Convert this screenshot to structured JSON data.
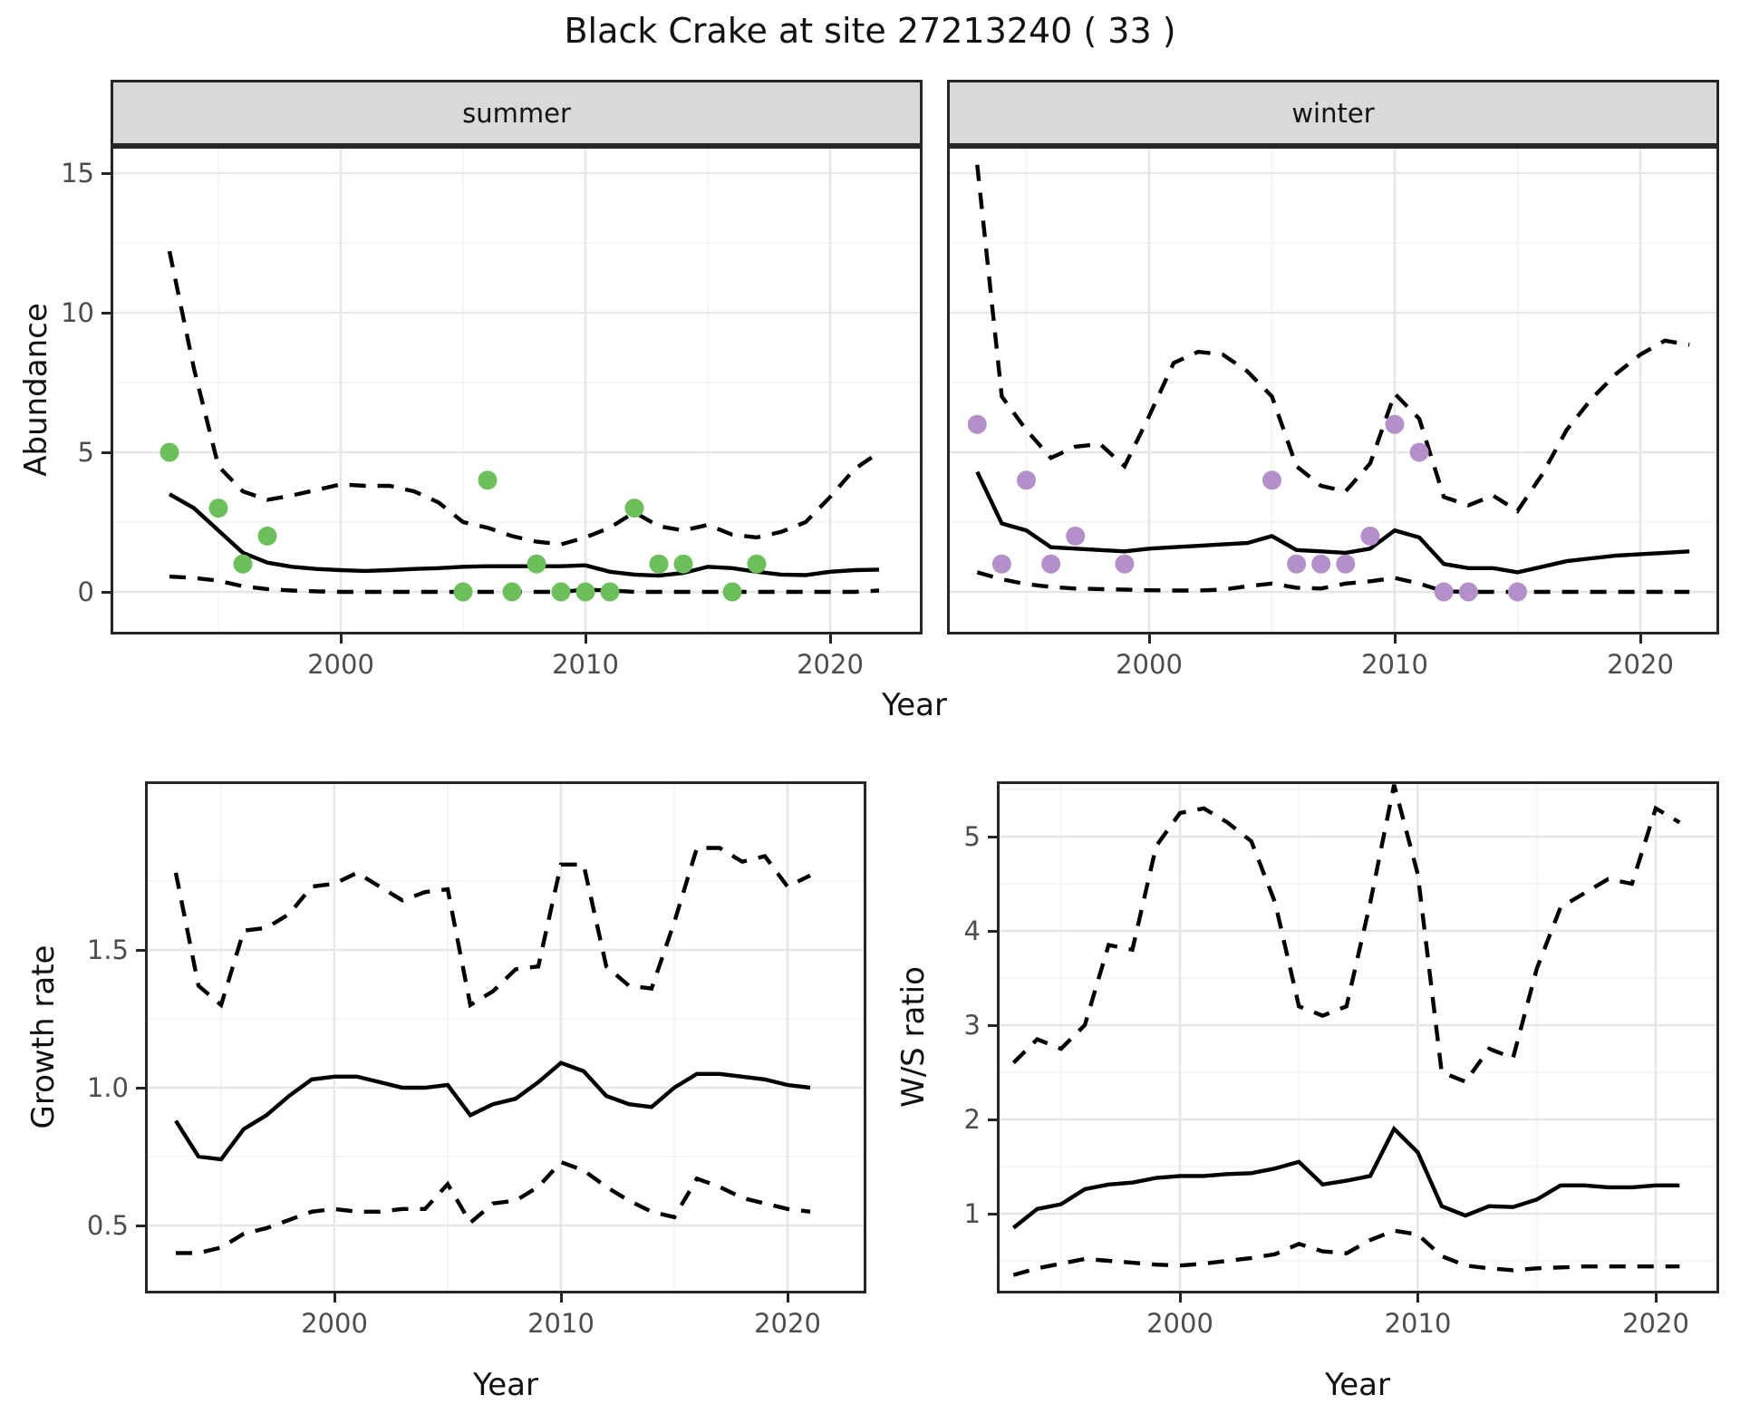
{
  "title": "Black Crake at site 27213240 ( 33 )",
  "axis_labels": {
    "y_top": "Abundance",
    "x_top": "Year",
    "y_bottom_left": "Growth rate",
    "x_bottom_left": "Year",
    "y_bottom_right": "W/S ratio",
    "x_bottom_right": "Year"
  },
  "colors": {
    "summer_point": "#6cbf5b",
    "winter_point": "#b58fc9",
    "line": "#000000",
    "grid_major": "#e7e7e7",
    "grid_minor": "#f4f4f4",
    "panel_border": "#262626",
    "strip_bg": "#d9d9d9",
    "tick_label": "#4d4d4d"
  },
  "chart_data": [
    {
      "id": "abundance-summer",
      "type": "line",
      "facet": "summer",
      "xlabel": "Year",
      "ylabel": "Abundance",
      "xlim": [
        1990.6,
        2023.8
      ],
      "ylim": [
        -1.5,
        16.0
      ],
      "x_ticks": [
        {
          "value": 2000,
          "label": "2000"
        },
        {
          "value": 2010,
          "label": "2010"
        },
        {
          "value": 2020,
          "label": "2020"
        }
      ],
      "y_ticks": [
        {
          "value": 0,
          "label": "0"
        },
        {
          "value": 5,
          "label": "5"
        },
        {
          "value": 10,
          "label": "10"
        },
        {
          "value": 15,
          "label": "15"
        }
      ],
      "x_minor": [
        1995,
        2005,
        2015
      ],
      "y_minor": [
        2.5,
        7.5,
        12.5
      ],
      "years": [
        1993,
        1994,
        1995,
        1996,
        1997,
        1998,
        1999,
        2000,
        2001,
        2002,
        2003,
        2004,
        2005,
        2006,
        2007,
        2008,
        2009,
        2010,
        2011,
        2012,
        2013,
        2014,
        2015,
        2016,
        2017,
        2018,
        2019,
        2020,
        2021,
        2022
      ],
      "series": [
        {
          "name": "upper_ci",
          "style": "dashed",
          "values": [
            12.2,
            8.0,
            4.5,
            3.6,
            3.3,
            3.45,
            3.65,
            3.85,
            3.8,
            3.8,
            3.6,
            3.2,
            2.5,
            2.3,
            2.0,
            1.8,
            1.7,
            1.95,
            2.3,
            2.85,
            2.35,
            2.2,
            2.4,
            2.05,
            1.95,
            2.15,
            2.5,
            3.4,
            4.4,
            5.0
          ]
        },
        {
          "name": "median",
          "style": "solid",
          "values": [
            3.5,
            3.0,
            2.2,
            1.4,
            1.05,
            0.9,
            0.82,
            0.78,
            0.75,
            0.78,
            0.82,
            0.85,
            0.9,
            0.92,
            0.92,
            0.92,
            0.92,
            0.95,
            0.72,
            0.62,
            0.58,
            0.68,
            0.9,
            0.85,
            0.72,
            0.62,
            0.6,
            0.72,
            0.78,
            0.8
          ]
        },
        {
          "name": "lower_ci",
          "style": "dashed",
          "values": [
            0.55,
            0.5,
            0.4,
            0.2,
            0.1,
            0.05,
            0.02,
            0,
            0,
            0,
            0,
            0,
            0,
            0,
            0,
            0,
            0,
            0.08,
            0.05,
            0,
            0,
            0,
            0,
            0,
            0,
            0,
            0,
            0,
            0,
            0.05
          ]
        }
      ],
      "points": {
        "name": "observed-counts-summer",
        "color": "#6cbf5b",
        "x": [
          1993,
          1995,
          1996,
          1997,
          2005,
          2006,
          2007,
          2008,
          2009,
          2010,
          2011,
          2012,
          2013,
          2014,
          2016,
          2017
        ],
        "y": [
          5,
          3,
          1,
          2,
          0,
          4,
          0,
          1,
          0,
          0,
          0,
          3,
          1,
          1,
          0,
          1
        ]
      }
    },
    {
      "id": "abundance-winter",
      "type": "line",
      "facet": "winter",
      "xlabel": "Year",
      "ylabel": "Abundance",
      "xlim": [
        1991.8,
        2023.2
      ],
      "ylim": [
        -1.5,
        16.0
      ],
      "x_ticks": [
        {
          "value": 2000,
          "label": "2000"
        },
        {
          "value": 2010,
          "label": "2010"
        },
        {
          "value": 2020,
          "label": "2020"
        }
      ],
      "y_ticks": [
        {
          "value": 0,
          "label": "0"
        },
        {
          "value": 5,
          "label": "5"
        },
        {
          "value": 10,
          "label": "10"
        },
        {
          "value": 15,
          "label": "15"
        }
      ],
      "x_minor": [
        1995,
        2005,
        2015
      ],
      "y_minor": [
        2.5,
        7.5,
        12.5
      ],
      "years": [
        1993,
        1994,
        1995,
        1996,
        1997,
        1998,
        1999,
        2000,
        2001,
        2002,
        2003,
        2004,
        2005,
        2006,
        2007,
        2008,
        2009,
        2010,
        2011,
        2012,
        2013,
        2014,
        2015,
        2016,
        2017,
        2018,
        2019,
        2020,
        2021,
        2022
      ],
      "series": [
        {
          "name": "upper_ci",
          "style": "dashed",
          "values": [
            15.3,
            7.0,
            5.8,
            4.8,
            5.2,
            5.3,
            4.5,
            6.3,
            8.2,
            8.6,
            8.5,
            7.9,
            7.0,
            4.5,
            3.8,
            3.6,
            4.6,
            7.1,
            6.2,
            3.4,
            3.1,
            3.45,
            2.9,
            4.2,
            5.8,
            6.9,
            7.8,
            8.5,
            9.0,
            8.85
          ]
        },
        {
          "name": "median",
          "style": "solid",
          "values": [
            4.3,
            2.45,
            2.2,
            1.6,
            1.55,
            1.5,
            1.45,
            1.55,
            1.6,
            1.65,
            1.7,
            1.75,
            2.0,
            1.5,
            1.45,
            1.4,
            1.55,
            2.2,
            1.95,
            1.0,
            0.85,
            0.85,
            0.7,
            0.9,
            1.1,
            1.2,
            1.3,
            1.35,
            1.4,
            1.45
          ]
        },
        {
          "name": "lower_ci",
          "style": "dashed",
          "values": [
            0.7,
            0.45,
            0.28,
            0.18,
            0.12,
            0.1,
            0.08,
            0.06,
            0.05,
            0.05,
            0.08,
            0.2,
            0.3,
            0.15,
            0.12,
            0.3,
            0.38,
            0.5,
            0.3,
            0.02,
            0,
            0,
            0,
            0,
            0,
            0,
            0,
            0,
            0,
            0
          ]
        }
      ],
      "points": {
        "name": "observed-counts-winter",
        "color": "#b58fc9",
        "x": [
          1993,
          1994,
          1995,
          1996,
          1997,
          1999,
          2005,
          2006,
          2007,
          2008,
          2009,
          2010,
          2011,
          2012,
          2013,
          2015
        ],
        "y": [
          6,
          1,
          4,
          1,
          2,
          1,
          4,
          1,
          1,
          1,
          2,
          6,
          5,
          0,
          0,
          0
        ]
      }
    },
    {
      "id": "growth-rate",
      "type": "line",
      "facet": "",
      "xlabel": "Year",
      "ylabel": "Growth rate",
      "xlim": [
        1991.6,
        2023.5
      ],
      "ylim": [
        0.25,
        2.11
      ],
      "x_ticks": [
        {
          "value": 2000,
          "label": "2000"
        },
        {
          "value": 2010,
          "label": "2010"
        },
        {
          "value": 2020,
          "label": "2020"
        }
      ],
      "y_ticks": [
        {
          "value": 0.5,
          "label": "0.5"
        },
        {
          "value": 1.0,
          "label": "1.0"
        },
        {
          "value": 1.5,
          "label": "1.5"
        }
      ],
      "x_minor": [
        1995,
        2005,
        2015
      ],
      "y_minor": [
        0.75,
        1.25,
        1.75
      ],
      "years": [
        1993,
        1994,
        1995,
        1996,
        1997,
        1998,
        1999,
        2000,
        2001,
        2002,
        2003,
        2004,
        2005,
        2006,
        2007,
        2008,
        2009,
        2010,
        2011,
        2012,
        2013,
        2014,
        2015,
        2016,
        2017,
        2018,
        2019,
        2020,
        2021
      ],
      "series": [
        {
          "name": "upper_ci",
          "style": "dashed",
          "values": [
            1.78,
            1.37,
            1.3,
            1.57,
            1.58,
            1.63,
            1.73,
            1.74,
            1.78,
            1.73,
            1.68,
            1.71,
            1.72,
            1.3,
            1.35,
            1.43,
            1.44,
            1.81,
            1.81,
            1.44,
            1.37,
            1.36,
            1.6,
            1.87,
            1.87,
            1.82,
            1.84,
            1.73,
            1.77
          ]
        },
        {
          "name": "median",
          "style": "solid",
          "values": [
            0.88,
            0.75,
            0.74,
            0.85,
            0.9,
            0.97,
            1.03,
            1.04,
            1.04,
            1.02,
            1.0,
            1.0,
            1.01,
            0.9,
            0.94,
            0.96,
            1.02,
            1.09,
            1.06,
            0.97,
            0.94,
            0.93,
            1.0,
            1.05,
            1.05,
            1.04,
            1.03,
            1.01,
            1.0
          ]
        },
        {
          "name": "lower_ci",
          "style": "dashed",
          "values": [
            0.4,
            0.4,
            0.42,
            0.47,
            0.49,
            0.52,
            0.55,
            0.56,
            0.55,
            0.55,
            0.56,
            0.56,
            0.65,
            0.51,
            0.58,
            0.59,
            0.64,
            0.73,
            0.7,
            0.64,
            0.59,
            0.55,
            0.53,
            0.67,
            0.64,
            0.6,
            0.58,
            0.56,
            0.55
          ]
        }
      ],
      "points": null
    },
    {
      "id": "ws-ratio",
      "type": "line",
      "facet": "",
      "xlabel": "Year",
      "ylabel": "W/S ratio",
      "xlim": [
        1992.3,
        2022.7
      ],
      "ylim": [
        0.15,
        5.59
      ],
      "x_ticks": [
        {
          "value": 2000,
          "label": "2000"
        },
        {
          "value": 2010,
          "label": "2010"
        },
        {
          "value": 2020,
          "label": "2020"
        }
      ],
      "y_ticks": [
        {
          "value": 1,
          "label": "1"
        },
        {
          "value": 2,
          "label": "2"
        },
        {
          "value": 3,
          "label": "3"
        },
        {
          "value": 4,
          "label": "4"
        },
        {
          "value": 5,
          "label": "5"
        }
      ],
      "x_minor": [
        1995,
        2005,
        2015
      ],
      "y_minor": [
        0.5,
        1.5,
        2.5,
        3.5,
        4.5,
        5.5
      ],
      "years": [
        1993,
        1994,
        1995,
        1996,
        1997,
        1998,
        1999,
        2000,
        2001,
        2002,
        2003,
        2004,
        2005,
        2006,
        2007,
        2008,
        2009,
        2010,
        2011,
        2012,
        2013,
        2014,
        2015,
        2016,
        2017,
        2018,
        2019,
        2020,
        2021
      ],
      "series": [
        {
          "name": "upper_ci",
          "style": "dashed",
          "values": [
            2.6,
            2.85,
            2.75,
            3.0,
            3.85,
            3.8,
            4.9,
            5.25,
            5.3,
            5.15,
            4.95,
            4.3,
            3.2,
            3.1,
            3.2,
            4.3,
            5.55,
            4.6,
            2.5,
            2.4,
            2.75,
            2.65,
            3.6,
            4.25,
            4.4,
            4.55,
            4.5,
            5.3,
            5.15
          ]
        },
        {
          "name": "median",
          "style": "solid",
          "values": [
            0.85,
            1.05,
            1.1,
            1.26,
            1.31,
            1.33,
            1.38,
            1.4,
            1.4,
            1.42,
            1.43,
            1.48,
            1.55,
            1.31,
            1.35,
            1.4,
            1.9,
            1.65,
            1.08,
            0.98,
            1.08,
            1.07,
            1.15,
            1.3,
            1.3,
            1.28,
            1.28,
            1.3,
            1.3
          ]
        },
        {
          "name": "lower_ci",
          "style": "dashed",
          "values": [
            0.35,
            0.42,
            0.47,
            0.52,
            0.5,
            0.48,
            0.46,
            0.45,
            0.47,
            0.5,
            0.53,
            0.57,
            0.68,
            0.6,
            0.58,
            0.72,
            0.82,
            0.78,
            0.55,
            0.45,
            0.42,
            0.4,
            0.42,
            0.43,
            0.44,
            0.44,
            0.44,
            0.44,
            0.44
          ]
        }
      ],
      "points": null
    }
  ]
}
